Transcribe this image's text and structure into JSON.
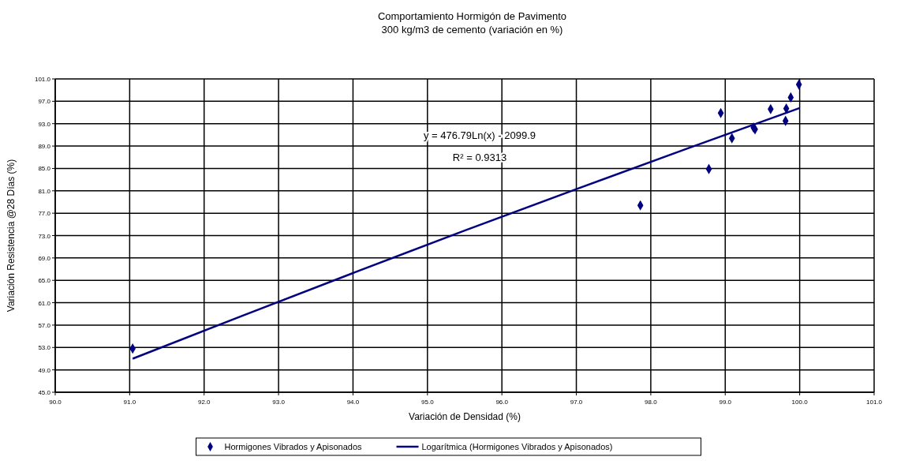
{
  "chart_data": {
    "type": "scatter",
    "title": "Comportamiento Hormigón de Pavimento",
    "subtitle": "300 kg/m3 de cemento (variación en %)",
    "xlabel": "Variación de Densidad (%)",
    "ylabel": "Variación Resistencia @28 Días (%)",
    "xlim": [
      90,
      101
    ],
    "xticks": [
      {
        "value": 90,
        "label": "90.0"
      },
      {
        "value": 91,
        "label": "91.0"
      },
      {
        "value": 92,
        "label": "92.0"
      },
      {
        "value": 93,
        "label": "93.0"
      },
      {
        "value": 94,
        "label": "94.0"
      },
      {
        "value": 95,
        "label": "95.0"
      },
      {
        "value": 96,
        "label": "96.0"
      },
      {
        "value": 97,
        "label": "97.0"
      },
      {
        "value": 98,
        "label": "98.0"
      },
      {
        "value": 99,
        "label": "99.0"
      },
      {
        "value": 100,
        "label": "100.0"
      },
      {
        "value": 101,
        "label": "101.0"
      }
    ],
    "ylim": [
      45,
      101
    ],
    "yticks": [
      {
        "value": 45,
        "label": "45.0"
      },
      {
        "value": 49,
        "label": "49.0"
      },
      {
        "value": 53,
        "label": "53.0"
      },
      {
        "value": 57,
        "label": "57.0"
      },
      {
        "value": 61,
        "label": "61.0"
      },
      {
        "value": 65,
        "label": "65.0"
      },
      {
        "value": 69,
        "label": "69.0"
      },
      {
        "value": 73,
        "label": "73.0"
      },
      {
        "value": 77,
        "label": "77.0"
      },
      {
        "value": 81,
        "label": "81.0"
      },
      {
        "value": 85,
        "label": "85.0"
      },
      {
        "value": 89,
        "label": "89.0"
      },
      {
        "value": 93,
        "label": "93.0"
      },
      {
        "value": 97,
        "label": "97.0"
      },
      {
        "value": 101,
        "label": "101.0"
      }
    ],
    "grid": true,
    "legend": "bottom",
    "marker": "diamond",
    "series": [
      {
        "name": "Hormigones Vibrados y Apisonados",
        "color": "#000080",
        "x": [
          91.04,
          97.86,
          98.78,
          98.94,
          99.09,
          99.38,
          99.4,
          99.61,
          99.81,
          99.82,
          99.88,
          99.99
        ],
        "values": [
          52.8,
          78.4,
          84.9,
          94.9,
          90.4,
          92.3,
          92.0,
          95.6,
          93.5,
          95.7,
          97.7,
          100.0
        ]
      },
      {
        "name": "Logarítmica (Hormigones Vibrados y Apisonados)",
        "type": "line",
        "color": "#000080",
        "line_style": "solid",
        "marker": "none",
        "x": [
          91.04,
          92.5,
          94,
          95.5,
          97,
          98.5,
          100
        ],
        "values": [
          51.0,
          58.6,
          66.3,
          73.9,
          81.3,
          88.6,
          95.8
        ]
      }
    ],
    "annotations": [
      "y = 476.79Ln(x) - 2099.9",
      "R² = 0.9313"
    ]
  }
}
